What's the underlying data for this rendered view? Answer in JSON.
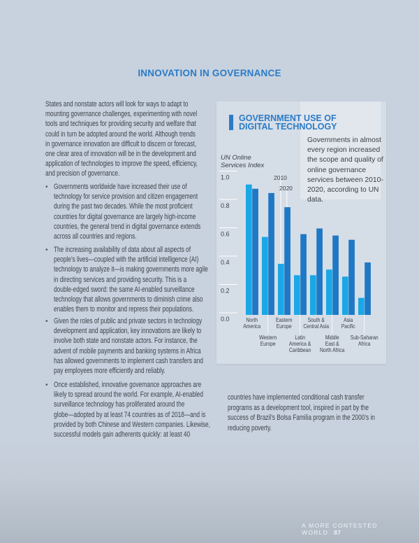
{
  "section_title": "INNOVATION IN GOVERNANCE",
  "left_column": [
    {
      "bullet": false,
      "lines": [
        "States and nonstate actors will look for ways to adapt to",
        "mounting governance challenges, experimenting with novel",
        "tools and techniques for providing security and welfare that",
        "could in turn be adopted around the world. Although trends",
        "in governance innovation are difficult to discern or forecast,",
        "one clear area of innovation will be in the development and",
        "application of technologies to improve the speed, efficiency,",
        "and precision of governance."
      ]
    },
    {
      "bullet": true,
      "lines": [
        "Governments worldwide have increased their use of",
        "technology for service provision and citizen engagement",
        "during the past two decades. While the most proficient",
        "countries for digital governance are largely high-income",
        "countries, the general trend in digital governance extends",
        "across all countries and regions."
      ]
    },
    {
      "bullet": true,
      "lines": [
        "The increasing availability of data about all aspects of",
        "people’s lives—coupled with the artificial intelligence (AI)",
        "technology to analyze it—is making governments more agile",
        "in directing services and providing security. This is a",
        "double-edged sword: the same AI-enabled surveillance",
        "technology that allows governments to diminish crime also",
        "enables them to monitor and repress their populations."
      ]
    },
    {
      "bullet": true,
      "lines": [
        "Given the roles of public and private sectors in technology",
        "development and application, key innovations are likely to",
        "involve both state and nonstate actors. For instance, the",
        "advent of mobile payments and banking systems in Africa",
        "has allowed governments to implement cash transfers and",
        "pay employees more efficiently and reliably."
      ]
    },
    {
      "bullet": true,
      "lines": [
        "Once established, innovative governance approaches are",
        "likely to spread around the world. For example, AI-enabled",
        "surveillance technology has proliferated around the",
        "globe—adopted by at least 74 countries as of 2018—and is",
        "provided by both Chinese and Western companies. Likewise,",
        "successful models gain adherents quickly: at least 40"
      ]
    }
  ],
  "right_column_lines": [
    "countries have implemented conditional cash transfer",
    "programs as a development tool, inspired in part by the",
    "success of Brazil’s Bolsa Familia program in the 2000’s in",
    "reducing poverty."
  ],
  "panel": {
    "title_line1": "GOVERNMENT USE OF",
    "title_line2": "DIGITAL TECHNOLOGY",
    "note": "Governments in almost every region increased the scope and quality of online governance services between 2010-2020, according to UN data."
  },
  "chart_data": {
    "type": "bar",
    "ylabel": "UN Online Services Index",
    "ylabel_lines": [
      "UN Online",
      "Services Index"
    ],
    "ylim": [
      0,
      1.0
    ],
    "yticks": [
      "0.0",
      "0.2",
      "0.4",
      "0.6",
      "0.8",
      "1.0"
    ],
    "grid": false,
    "categories": [
      {
        "lines": [
          "North",
          "America"
        ],
        "row": "top"
      },
      {
        "lines": [
          "Western",
          "Europe"
        ],
        "row": "bottom"
      },
      {
        "lines": [
          "Eastern",
          "Europe"
        ],
        "row": "top"
      },
      {
        "lines": [
          "Latin",
          "America &",
          "Caribbean"
        ],
        "row": "bottom"
      },
      {
        "lines": [
          "South &",
          "Central Asia"
        ],
        "row": "top"
      },
      {
        "lines": [
          "Middle",
          "East &",
          "North Africa"
        ],
        "row": "bottom"
      },
      {
        "lines": [
          "Asia",
          "Pacific"
        ],
        "row": "top"
      },
      {
        "lines": [
          "Sub-Saharan",
          "Africa"
        ],
        "row": "bottom"
      }
    ],
    "series": [
      {
        "name": "2010",
        "color": "#1aa7e6",
        "values": [
          0.92,
          0.55,
          0.36,
          0.28,
          0.28,
          0.32,
          0.27,
          0.12
        ]
      },
      {
        "name": "2020",
        "color": "#1f78c4",
        "values": [
          0.89,
          0.86,
          0.76,
          0.57,
          0.61,
          0.56,
          0.53,
          0.37
        ]
      }
    ]
  },
  "footer": {
    "running_title": "A MORE CONTESTED WORLD",
    "page_number": "87"
  },
  "colors": {
    "accent": "#2b7bc6",
    "background": "#c8d2de"
  }
}
